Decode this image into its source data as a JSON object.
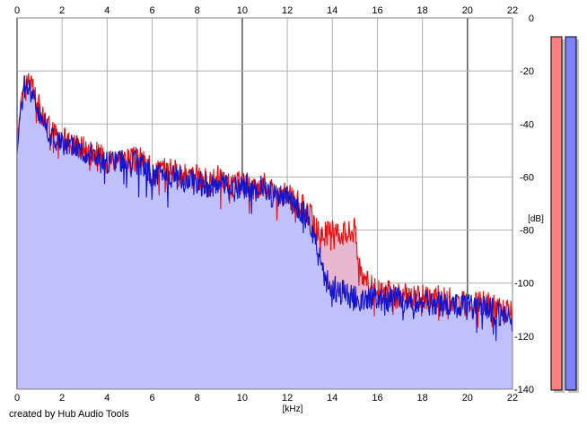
{
  "chart_data": {
    "type": "area",
    "xlabel": "[kHz]",
    "ylabel": "[dB]",
    "xlim": [
      0,
      22
    ],
    "ylim": [
      -140,
      0
    ],
    "xticks": [
      0,
      2,
      4,
      6,
      8,
      10,
      12,
      14,
      16,
      18,
      20,
      22
    ],
    "yticks": [
      0,
      -20,
      -40,
      -60,
      -80,
      -100,
      -120,
      -140
    ],
    "grid": true,
    "series": [
      {
        "channel": "red",
        "color": "#e81010",
        "x": [
          0,
          0.2,
          0.4,
          0.6,
          0.8,
          1.0,
          1.5,
          2.0,
          2.5,
          3.0,
          3.5,
          4.0,
          4.5,
          5.0,
          5.5,
          6.0,
          6.5,
          7.0,
          7.5,
          8.0,
          8.5,
          9.0,
          9.5,
          10.0,
          10.5,
          11.0,
          11.5,
          12.0,
          12.5,
          13.0,
          13.3,
          13.6,
          14.0,
          14.5,
          15.0,
          15.2,
          15.5,
          16.0,
          17.0,
          18.0,
          19.0,
          20.0,
          21.0,
          22.0
        ],
        "y": [
          -48,
          -28,
          -22,
          -25,
          -30,
          -34,
          -42,
          -46,
          -47,
          -49,
          -51,
          -54,
          -52,
          -54,
          -53,
          -58,
          -57,
          -58,
          -60,
          -60,
          -62,
          -60,
          -64,
          -62,
          -64,
          -63,
          -66,
          -67,
          -70,
          -74,
          -80,
          -82,
          -80,
          -81,
          -80,
          -92,
          -100,
          -103,
          -105,
          -105,
          -106,
          -108,
          -108,
          -112
        ]
      },
      {
        "channel": "blue",
        "color": "#1414c8",
        "x": [
          0,
          0.2,
          0.4,
          0.6,
          0.8,
          1.0,
          1.5,
          2.0,
          2.5,
          3.0,
          3.5,
          4.0,
          4.5,
          5.0,
          5.5,
          6.0,
          6.5,
          7.0,
          7.5,
          8.0,
          8.5,
          9.0,
          9.5,
          10.0,
          10.5,
          11.0,
          11.5,
          12.0,
          12.5,
          13.0,
          13.3,
          13.6,
          14.0,
          14.5,
          15.0,
          15.2,
          15.5,
          16.0,
          17.0,
          18.0,
          19.0,
          20.0,
          21.0,
          22.0
        ],
        "y": [
          -50,
          -30,
          -24,
          -27,
          -32,
          -36,
          -44,
          -48,
          -48,
          -50,
          -52,
          -55,
          -53,
          -55,
          -55,
          -60,
          -58,
          -60,
          -62,
          -62,
          -63,
          -62,
          -65,
          -63,
          -65,
          -64,
          -68,
          -68,
          -72,
          -76,
          -86,
          -97,
          -102,
          -103,
          -106,
          -106,
          -105,
          -106,
          -106,
          -107,
          -108,
          -109,
          -110,
          -114
        ]
      }
    ],
    "fill_color": "#c0c0fc"
  },
  "meters": {
    "left_color": "#ff8080",
    "right_color": "#8080ff"
  },
  "credit": "created by Hub Audio Tools"
}
